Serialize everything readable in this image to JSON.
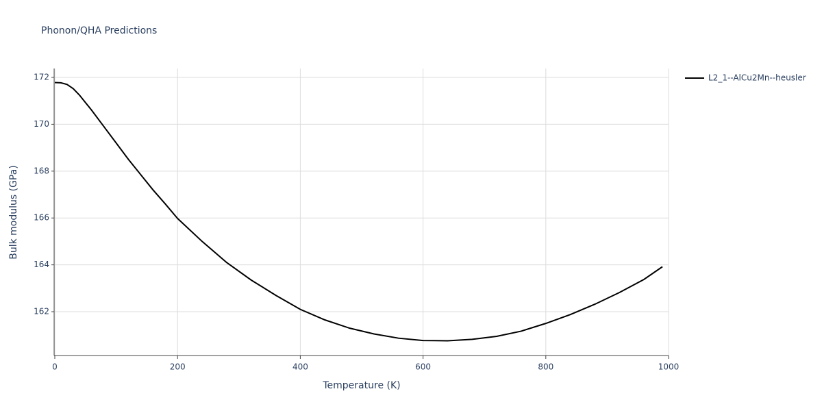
{
  "chart_data": {
    "type": "line",
    "title": "Phonon/QHA Predictions",
    "xlabel": "Temperature (K)",
    "ylabel": "Bulk modulus (GPa)",
    "x": [
      0,
      10,
      20,
      30,
      40,
      60,
      80,
      100,
      120,
      140,
      160,
      180,
      200,
      240,
      280,
      320,
      360,
      400,
      440,
      480,
      520,
      560,
      600,
      640,
      680,
      720,
      760,
      800,
      840,
      880,
      920,
      960,
      990
    ],
    "series": [
      {
        "name": "L2_1--AlCu2Mn--heusler",
        "color": "#000000",
        "values": [
          171.78,
          171.77,
          171.7,
          171.52,
          171.25,
          170.6,
          169.9,
          169.2,
          168.5,
          167.85,
          167.2,
          166.6,
          165.98,
          165.0,
          164.1,
          163.35,
          162.7,
          162.1,
          161.65,
          161.3,
          161.05,
          160.87,
          160.77,
          160.76,
          160.82,
          160.95,
          161.17,
          161.5,
          161.88,
          162.32,
          162.82,
          163.38,
          163.92
        ]
      }
    ],
    "xlim": [
      0,
      1000
    ],
    "xticks": [
      0,
      200,
      400,
      600,
      800,
      1000
    ],
    "ylim": [
      160.13,
      172.38
    ],
    "yticks": [
      162,
      164,
      166,
      168,
      170,
      172
    ],
    "grid": true,
    "legend": "right"
  }
}
